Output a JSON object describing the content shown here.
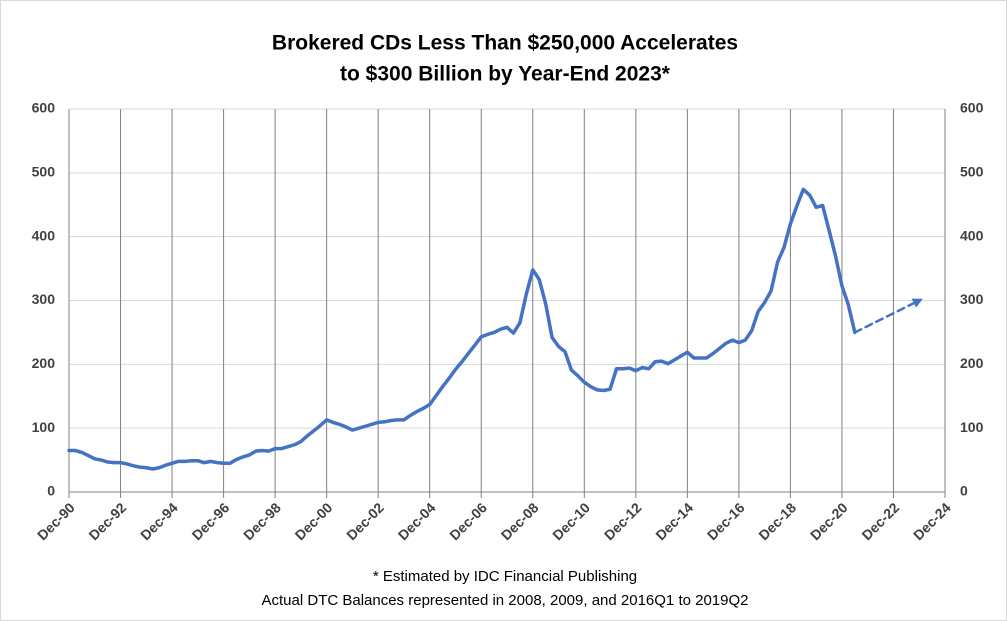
{
  "chart_data": {
    "type": "line",
    "title": [
      "Brokered CDs Less Than $250,000 Accelerates",
      "to $300 Billion by Year-End 2023*"
    ],
    "notes": [
      "* Estimated by IDC Financial Publishing",
      "Actual DTC Balances represented in 2008, 2009, and 2016Q1 to 2019Q2"
    ],
    "xlim": [
      "1990-12",
      "2024-12"
    ],
    "xticks": [
      {
        "value": "1990-12",
        "label": "Dec-90"
      },
      {
        "value": "1992-12",
        "label": "Dec-92"
      },
      {
        "value": "1994-12",
        "label": "Dec-94"
      },
      {
        "value": "1996-12",
        "label": "Dec-96"
      },
      {
        "value": "1998-12",
        "label": "Dec-98"
      },
      {
        "value": "2000-12",
        "label": "Dec-00"
      },
      {
        "value": "2002-12",
        "label": "Dec-02"
      },
      {
        "value": "2004-12",
        "label": "Dec-04"
      },
      {
        "value": "2006-12",
        "label": "Dec-06"
      },
      {
        "value": "2008-12",
        "label": "Dec-08"
      },
      {
        "value": "2010-12",
        "label": "Dec-10"
      },
      {
        "value": "2012-12",
        "label": "Dec-12"
      },
      {
        "value": "2014-12",
        "label": "Dec-14"
      },
      {
        "value": "2016-12",
        "label": "Dec-16"
      },
      {
        "value": "2018-12",
        "label": "Dec-18"
      },
      {
        "value": "2020-12",
        "label": "Dec-20"
      },
      {
        "value": "2022-12",
        "label": "Dec-22"
      },
      {
        "value": "2024-12",
        "label": "Dec-24"
      }
    ],
    "ylim": [
      0,
      600
    ],
    "yticks": [
      0,
      100,
      200,
      300,
      400,
      500,
      600
    ],
    "y2lim": [
      0,
      600
    ],
    "y2ticks": [
      0,
      100,
      200,
      300,
      400,
      500,
      600
    ],
    "grid": true,
    "series": [
      {
        "color": "#4472c4",
        "style": "solid",
        "x": [
          "1990-12",
          "1991-03",
          "1991-06",
          "1991-09",
          "1991-12",
          "1992-03",
          "1992-06",
          "1992-09",
          "1992-12",
          "1993-03",
          "1993-06",
          "1993-09",
          "1993-12",
          "1994-03",
          "1994-06",
          "1994-09",
          "1994-12",
          "1995-03",
          "1995-06",
          "1995-09",
          "1995-12",
          "1996-03",
          "1996-06",
          "1996-09",
          "1996-12",
          "1997-03",
          "1997-06",
          "1997-09",
          "1997-12",
          "1998-03",
          "1998-06",
          "1998-09",
          "1998-12",
          "1999-03",
          "1999-06",
          "1999-09",
          "1999-12",
          "2000-03",
          "2000-06",
          "2000-09",
          "2000-12",
          "2001-03",
          "2001-06",
          "2001-09",
          "2001-12",
          "2002-03",
          "2002-06",
          "2002-09",
          "2002-12",
          "2003-03",
          "2003-06",
          "2003-09",
          "2003-12",
          "2004-03",
          "2004-06",
          "2004-09",
          "2004-12",
          "2005-03",
          "2005-06",
          "2005-09",
          "2005-12",
          "2006-03",
          "2006-06",
          "2006-09",
          "2006-12",
          "2007-03",
          "2007-06",
          "2007-09",
          "2007-12",
          "2008-03",
          "2008-06",
          "2008-09",
          "2008-12",
          "2009-03",
          "2009-06",
          "2009-09",
          "2009-12",
          "2010-03",
          "2010-06",
          "2010-09",
          "2010-12",
          "2011-03",
          "2011-06",
          "2011-09",
          "2011-12",
          "2012-03",
          "2012-06",
          "2012-09",
          "2012-12",
          "2013-03",
          "2013-06",
          "2013-09",
          "2013-12",
          "2014-03",
          "2014-06",
          "2014-09",
          "2014-12",
          "2015-03",
          "2015-06",
          "2015-09",
          "2015-12",
          "2016-03",
          "2016-06",
          "2016-09",
          "2016-12",
          "2017-03",
          "2017-06",
          "2017-09",
          "2017-12",
          "2018-03",
          "2018-06",
          "2018-09",
          "2018-12",
          "2019-03",
          "2019-06",
          "2019-09",
          "2019-12",
          "2020-03",
          "2020-06",
          "2020-09",
          "2020-12",
          "2021-03",
          "2021-06"
        ],
        "values": [
          65,
          65,
          62,
          57,
          52,
          50,
          47,
          46,
          46,
          44,
          41,
          39,
          38,
          36,
          38,
          42,
          45,
          48,
          48,
          49,
          49,
          46,
          48,
          46,
          45,
          45,
          51,
          55,
          58,
          64,
          65,
          64,
          68,
          68,
          71,
          74,
          79,
          88,
          96,
          104,
          113,
          109,
          106,
          102,
          97,
          100,
          103,
          106,
          109,
          110,
          112,
          113,
          113,
          120,
          126,
          131,
          137,
          151,
          165,
          178,
          192,
          204,
          217,
          230,
          243,
          247,
          250,
          255,
          258,
          249,
          265,
          310,
          348,
          333,
          295,
          242,
          228,
          220,
          191,
          182,
          172,
          165,
          160,
          159,
          161,
          193,
          193,
          194,
          190,
          195,
          193,
          204,
          205,
          201,
          207,
          213,
          219,
          210,
          210,
          210,
          217,
          225,
          233,
          238,
          234,
          238,
          253,
          283,
          297,
          315,
          360,
          383,
          420,
          448,
          474,
          465,
          446,
          449,
          410,
          370,
          323,
          293,
          250
        ]
      },
      {
        "color": "#4472c4",
        "style": "dashed",
        "x": [
          "2021-06",
          "2023-12"
        ],
        "values": [
          250,
          300
        ]
      }
    ]
  }
}
